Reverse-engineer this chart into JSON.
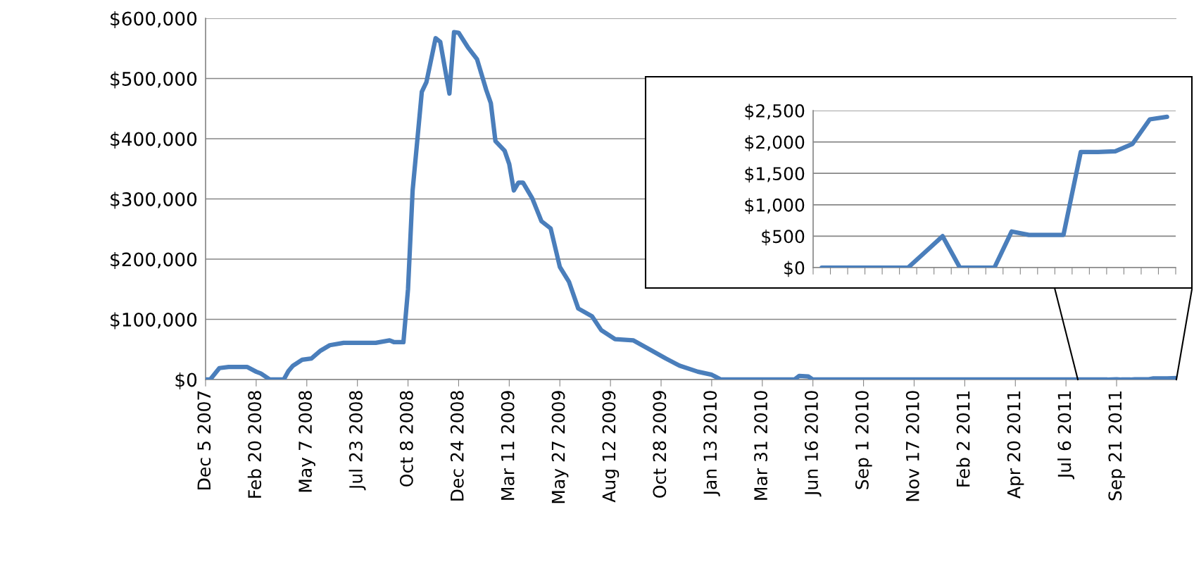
{
  "chart_data": [
    {
      "type": "line",
      "grid": "y",
      "line_style": "solid",
      "marker": "none",
      "xlim": [
        "2007-12-05",
        "2011-12-21"
      ],
      "xticks": [
        {
          "value": "2007-12-05",
          "label": "Dec 5 2007"
        },
        {
          "value": "2008-02-20",
          "label": "Feb 20 2008"
        },
        {
          "value": "2008-05-07",
          "label": "May 7 2008"
        },
        {
          "value": "2008-07-23",
          "label": "Jul 23 2008"
        },
        {
          "value": "2008-10-08",
          "label": "Oct 8 2008"
        },
        {
          "value": "2008-12-24",
          "label": "Dec 24 2008"
        },
        {
          "value": "2009-03-11",
          "label": "Mar 11 2009"
        },
        {
          "value": "2009-05-27",
          "label": "May 27 2009"
        },
        {
          "value": "2009-08-12",
          "label": "Aug 12 2009"
        },
        {
          "value": "2009-10-28",
          "label": "Oct 28 2009"
        },
        {
          "value": "2010-01-13",
          "label": "Jan 13 2010"
        },
        {
          "value": "2010-03-31",
          "label": "Mar 31 2010"
        },
        {
          "value": "2010-06-16",
          "label": "Jun 16 2010"
        },
        {
          "value": "2010-09-01",
          "label": "Sep 1 2010"
        },
        {
          "value": "2010-11-17",
          "label": "Nov 17 2010"
        },
        {
          "value": "2011-02-02",
          "label": "Feb 2 2011"
        },
        {
          "value": "2011-04-20",
          "label": "Apr 20 2011"
        },
        {
          "value": "2011-07-06",
          "label": "Jul 6 2011"
        },
        {
          "value": "2011-09-21",
          "label": "Sep 21 2011"
        }
      ],
      "ylim": [
        0,
        600000
      ],
      "yticks": [
        {
          "value": 0,
          "label": "$0"
        },
        {
          "value": 100000,
          "label": "$100,000"
        },
        {
          "value": 200000,
          "label": "$200,000"
        },
        {
          "value": 300000,
          "label": "$300,000"
        },
        {
          "value": 400000,
          "label": "$400,000"
        },
        {
          "value": 500000,
          "label": "$500,000"
        },
        {
          "value": 600000,
          "label": "$600,000"
        }
      ],
      "x": [
        "2007-12-05",
        "2007-12-12",
        "2007-12-26",
        "2008-01-09",
        "2008-02-06",
        "2008-02-20",
        "2008-02-27",
        "2008-03-12",
        "2008-04-02",
        "2008-04-09",
        "2008-04-16",
        "2008-04-30",
        "2008-05-14",
        "2008-05-28",
        "2008-06-11",
        "2008-07-02",
        "2008-08-20",
        "2008-09-10",
        "2008-09-17",
        "2008-10-01",
        "2008-10-08",
        "2008-10-15",
        "2008-10-22",
        "2008-10-29",
        "2008-11-05",
        "2008-11-19",
        "2008-11-26",
        "2008-12-10",
        "2008-12-17",
        "2008-12-24",
        "2009-01-07",
        "2009-01-21",
        "2009-02-04",
        "2009-02-11",
        "2009-02-18",
        "2009-03-04",
        "2009-03-11",
        "2009-03-18",
        "2009-03-25",
        "2009-04-01",
        "2009-04-15",
        "2009-04-29",
        "2009-05-13",
        "2009-05-27",
        "2009-06-10",
        "2009-06-24",
        "2009-07-15",
        "2009-07-29",
        "2009-08-19",
        "2009-09-16",
        "2009-10-14",
        "2009-11-04",
        "2009-11-25",
        "2009-12-23",
        "2010-01-13",
        "2010-01-27",
        "2010-05-19",
        "2010-05-26",
        "2010-06-09",
        "2010-06-16",
        "2011-09-07",
        "2011-09-21",
        "2011-09-28",
        "2011-10-12",
        "2011-10-19",
        "2011-11-09",
        "2011-11-16",
        "2011-12-07",
        "2011-12-21"
      ],
      "series": [
        {
          "color": "#4a7ebb",
          "values": [
            0,
            0,
            19000,
            21000,
            21000,
            13000,
            10000,
            0,
            0,
            14000,
            23000,
            33000,
            35000,
            48000,
            57000,
            61000,
            61000,
            65000,
            62000,
            62000,
            150000,
            314000,
            396000,
            478000,
            494000,
            567000,
            561000,
            475000,
            577000,
            576000,
            552000,
            532000,
            481000,
            459000,
            396000,
            380000,
            358000,
            314000,
            327000,
            327000,
            301000,
            263000,
            251000,
            187000,
            162000,
            118000,
            105000,
            82000,
            67000,
            65000,
            48000,
            35000,
            23000,
            13000,
            8000,
            0,
            0,
            6000,
            5000,
            0,
            0,
            500,
            0,
            0,
            580,
            520,
            1840,
            1970,
            2400
          ]
        }
      ]
    },
    {
      "type": "line",
      "grid": "y",
      "line_style": "solid",
      "marker": "none",
      "tick_labels": "y",
      "categories": [
        null,
        null,
        null,
        null,
        null,
        null,
        null,
        null,
        null,
        null,
        null,
        null,
        null,
        null,
        null,
        null,
        null,
        null,
        null,
        null,
        null
      ],
      "ylim": [
        0,
        2500
      ],
      "yticks": [
        {
          "value": 0,
          "label": "$0"
        },
        {
          "value": 500,
          "label": "$500"
        },
        {
          "value": 1000,
          "label": "$1,000"
        },
        {
          "value": 1500,
          "label": "$1,500"
        },
        {
          "value": 2000,
          "label": "$2,000"
        },
        {
          "value": 2500,
          "label": "$2,500"
        }
      ],
      "series": [
        {
          "color": "#4a7ebb",
          "values": [
            0,
            0,
            0,
            0,
            0,
            0,
            250,
            500,
            0,
            0,
            0,
            575,
            520,
            520,
            520,
            1840,
            1840,
            1850,
            1970,
            2360,
            2400
          ]
        }
      ]
    }
  ]
}
